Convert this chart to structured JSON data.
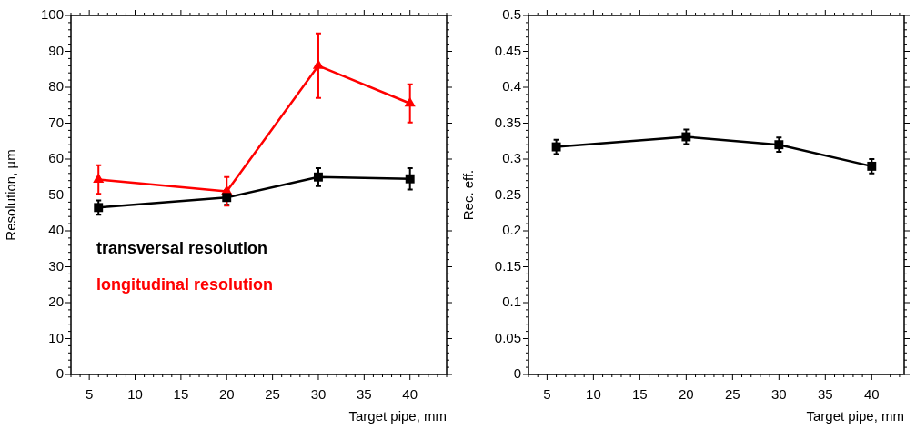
{
  "chart_data": [
    {
      "type": "line",
      "xlabel": "Target pipe, mm",
      "ylabel": "Resolution, µm",
      "x": [
        6,
        20,
        30,
        40
      ],
      "xlim": [
        3,
        44
      ],
      "xticks": [
        5,
        10,
        15,
        20,
        25,
        30,
        35,
        40
      ],
      "ylim": [
        0,
        100
      ],
      "yticks": [
        0,
        10,
        20,
        30,
        40,
        50,
        60,
        70,
        80,
        90,
        100
      ],
      "grid": false,
      "legend": "left",
      "series": [
        {
          "name": "transversal resolution",
          "color": "#000000",
          "marker": "square",
          "values": [
            46.5,
            49.3,
            55,
            54.5
          ],
          "errors": [
            2,
            2,
            2.5,
            3
          ]
        },
        {
          "name": "longitudinal resolution",
          "color": "#ff0000",
          "marker": "triangle",
          "values": [
            54.3,
            51,
            86,
            75.5
          ],
          "errors": [
            4,
            4,
            9,
            5.3
          ]
        }
      ]
    },
    {
      "type": "line",
      "xlabel": "Target pipe, mm",
      "ylabel": "Rec. eff.",
      "x": [
        6,
        20,
        30,
        40
      ],
      "xlim": [
        3,
        43.5
      ],
      "xticks": [
        5,
        10,
        15,
        20,
        25,
        30,
        35,
        40
      ],
      "ylim": [
        0,
        0.5
      ],
      "yticks": [
        0,
        0.05,
        0.1,
        0.15,
        0.2,
        0.25,
        0.3,
        0.35,
        0.4,
        0.45,
        0.5
      ],
      "grid": false,
      "series": [
        {
          "color": "#000000",
          "marker": "square",
          "values": [
            0.317,
            0.331,
            0.32,
            0.29
          ],
          "errors": [
            0.01,
            0.01,
            0.01,
            0.01
          ]
        }
      ]
    }
  ]
}
